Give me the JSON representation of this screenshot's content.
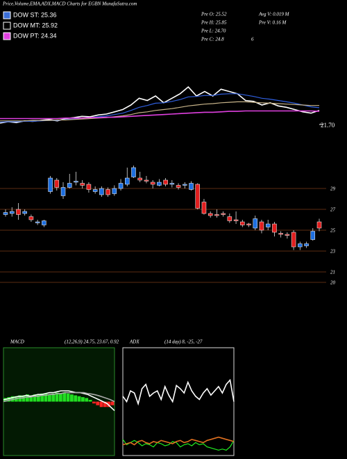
{
  "header": {
    "title": "Price,Volume,EMA,ADX,MACD Charts for EGBN MunafaSutra.com"
  },
  "legend": [
    {
      "label": "DOW ST: 25.36",
      "color": "#3b6fd8"
    },
    {
      "label": "DOW MT: 25.92",
      "color": "#000000"
    },
    {
      "label": "DOW PT: 24.34",
      "color": "#e040e0"
    }
  ],
  "info": [
    "Pre  O: 25.52",
    "Avg V: 0.019 M",
    "Pre  H: 25.85",
    "Pre  V: 0.16  M",
    "Pre  L: 24.70",
    "Pre  C: 24.8",
    "6"
  ],
  "chart_data": [
    {
      "type": "line",
      "ylim": [
        20,
        40
      ],
      "last_label": {
        "value": 21.7,
        "label": "21.70"
      },
      "series": [
        {
          "color": "#ffffff",
          "values": [
            22,
            22.3,
            22.1,
            22.5,
            22.4,
            22.6,
            22.8,
            22.5,
            23,
            23.2,
            23.5,
            23.4,
            23.8,
            24,
            24.5,
            25,
            26,
            27.5,
            27,
            28,
            26.5,
            27.5,
            28.5,
            30,
            28,
            29,
            28,
            29.5,
            29,
            28.5,
            27,
            26.8,
            26,
            26.5,
            25.8,
            25.5,
            25,
            24.5,
            24.2,
            24.8
          ]
        },
        {
          "color": "#2f5fe0",
          "values": [
            22.2,
            22.3,
            22.3,
            22.4,
            22.4,
            22.5,
            22.6,
            22.6,
            22.8,
            22.9,
            23.1,
            23.2,
            23.4,
            23.6,
            23.9,
            24.2,
            24.8,
            25.5,
            25.9,
            26.4,
            26.5,
            26.8,
            27.2,
            27.8,
            27.9,
            28.1,
            28.1,
            28.4,
            28.5,
            28.5,
            28.2,
            27.9,
            27.5,
            27.3,
            27,
            26.7,
            26.4,
            26,
            25.6,
            25.4
          ]
        },
        {
          "color": "#c8b48a",
          "values": [
            22.5,
            22.5,
            22.5,
            22.5,
            22.6,
            22.6,
            22.6,
            22.7,
            22.7,
            22.8,
            22.9,
            23,
            23.1,
            23.2,
            23.4,
            23.6,
            23.9,
            24.3,
            24.5,
            24.8,
            25,
            25.2,
            25.5,
            25.8,
            26,
            26.2,
            26.3,
            26.5,
            26.6,
            26.7,
            26.7,
            26.6,
            26.5,
            26.4,
            26.3,
            26.2,
            26.1,
            26,
            25.9,
            25.9
          ]
        },
        {
          "color": "#e040e0",
          "values": [
            23,
            23,
            23,
            23,
            23,
            23,
            23,
            23,
            23.1,
            23.1,
            23.1,
            23.2,
            23.2,
            23.3,
            23.3,
            23.4,
            23.5,
            23.6,
            23.7,
            23.8,
            23.9,
            24,
            24.1,
            24.2,
            24.3,
            24.4,
            24.4,
            24.5,
            24.6,
            24.6,
            24.7,
            24.7,
            24.7,
            24.7,
            24.7,
            24.7,
            24.7,
            24.7,
            24.7,
            24.6
          ]
        }
      ]
    },
    {
      "type": "candlestick",
      "ylim": [
        19,
        32
      ],
      "yticks": [
        29,
        27,
        25,
        23,
        21,
        20
      ],
      "grid": true,
      "up_color": "#1e6fe0",
      "down_color": "#e01e1e",
      "open": [
        26.5,
        26.6,
        27,
        26.6,
        26.3,
        25.7,
        25.5,
        28.7,
        29.8,
        28.3,
        29.1,
        29.6,
        29.5,
        29.4,
        28.7,
        28.4,
        28.9,
        28.5,
        29,
        29.4,
        30.1,
        30,
        29.8,
        29.6,
        29.3,
        29.8,
        29.4,
        29.3,
        29.3,
        28.9,
        29.4,
        27.7,
        26.6,
        26.5,
        26.6,
        26.3,
        26,
        25.8,
        25.6,
        25.2,
        25.8,
        25.3,
        25.6,
        24.7,
        24.6,
        24.8,
        23.4,
        23.5,
        24.1,
        25.8
      ],
      "high": [
        27,
        27.2,
        27.6,
        27,
        26.5,
        26,
        26,
        30.2,
        30,
        29.6,
        30.4,
        30.6,
        29.8,
        29.6,
        29.2,
        29.2,
        29.1,
        29.3,
        29.9,
        31,
        31.2,
        30.6,
        30.2,
        29.8,
        29.9,
        30,
        29.8,
        29.5,
        29.6,
        29.7,
        29.5,
        28,
        26.8,
        27,
        26.8,
        26.6,
        26.8,
        26,
        25.7,
        26.4,
        26,
        26,
        25.8,
        24.9,
        24.8,
        25,
        23.9,
        23.9,
        25.2,
        26.1
      ],
      "low": [
        26.3,
        26.3,
        26,
        26.4,
        25.8,
        25.5,
        25.3,
        28.5,
        28.8,
        28,
        29,
        29.3,
        29,
        28.6,
        28.5,
        28.2,
        28.2,
        28.3,
        28.8,
        29.2,
        30,
        29.6,
        29.5,
        29,
        29.2,
        29.2,
        29.1,
        28.9,
        29,
        28.8,
        27,
        26.5,
        26.2,
        26.2,
        26.3,
        25.7,
        25.6,
        25.3,
        25.3,
        25,
        24.7,
        25,
        24.4,
        24.3,
        24.2,
        23.1,
        23.1,
        23.3,
        24,
        24.9
      ],
      "close": [
        26.7,
        26.8,
        26.5,
        26.8,
        26,
        25.8,
        25.9,
        30,
        29.1,
        29.1,
        29.5,
        29.7,
        29.3,
        28.9,
        28.9,
        29,
        28.4,
        29,
        29.5,
        30,
        31,
        29.8,
        29.7,
        29.4,
        29.6,
        29.4,
        29.5,
        29.1,
        29.4,
        29.5,
        27.1,
        26.6,
        26.4,
        26.4,
        26.5,
        25.9,
        25.9,
        25.5,
        25.5,
        26.1,
        25,
        25.6,
        24.8,
        24.6,
        24.5,
        23.4,
        23.7,
        23.7,
        24.9,
        25.2
      ]
    },
    {
      "type": "macd",
      "title": "MACD",
      "subtitle": "(12,26,9) 24.75, 23.67, 0.92",
      "ylim": [
        -3,
        3
      ],
      "up_color": "#22dd22",
      "down_color": "#ff2222",
      "histogram": [
        0.2,
        0.25,
        0.3,
        0.3,
        0.35,
        0.35,
        0.4,
        0.35,
        0.4,
        0.4,
        0.45,
        0.45,
        0.4,
        0.45,
        0.5,
        0.45,
        0.5,
        0.45,
        0.4,
        0.35,
        0.3,
        0.25,
        0.2,
        0.1,
        -0.1,
        -0.2,
        -0.3,
        -0.3,
        -0.3,
        -0.2
      ],
      "series": [
        {
          "color": "#ffffff",
          "values": [
            0.1,
            0.15,
            0.2,
            0.25,
            0.3,
            0.3,
            0.35,
            0.3,
            0.35,
            0.4,
            0.4,
            0.45,
            0.5,
            0.5,
            0.55,
            0.6,
            0.6,
            0.6,
            0.55,
            0.5,
            0.5,
            0.45,
            0.4,
            0.3,
            0.2,
            0.1,
            0,
            -0.1,
            -0.3,
            -0.5
          ]
        },
        {
          "color": "#aaaaaa",
          "values": [
            0,
            0.05,
            0.1,
            0.15,
            0.2,
            0.2,
            0.25,
            0.25,
            0.3,
            0.3,
            0.35,
            0.35,
            0.4,
            0.4,
            0.45,
            0.45,
            0.5,
            0.5,
            0.5,
            0.5,
            0.5,
            0.5,
            0.45,
            0.42,
            0.38,
            0.32,
            0.25,
            0.18,
            0.1,
            0
          ]
        }
      ]
    },
    {
      "type": "adx",
      "title": "ADX",
      "subtitle": "(14  day) 8, -25, -27",
      "ylim": [
        0,
        100
      ],
      "series": [
        {
          "color": "#ffffff",
          "values": [
            55,
            50,
            60,
            58,
            48,
            62,
            66,
            55,
            58,
            60,
            52,
            64,
            56,
            50,
            65,
            62,
            58,
            68,
            60,
            55,
            52,
            58,
            62,
            56,
            60,
            64,
            58,
            66,
            70,
            50
          ]
        },
        {
          "color": "#22ee22",
          "values": [
            15,
            10,
            12,
            14,
            12,
            9,
            11,
            10,
            8,
            12,
            11,
            9,
            10,
            13,
            12,
            8,
            10,
            11,
            9,
            12,
            10,
            11,
            8,
            7,
            6,
            5,
            6,
            5,
            8,
            14
          ]
        },
        {
          "color": "#e07020",
          "values": [
            10,
            11,
            12,
            10,
            13,
            14,
            12,
            11,
            13,
            12,
            14,
            13,
            12,
            11,
            13,
            14,
            12,
            13,
            15,
            14,
            13,
            12,
            14,
            15,
            16,
            17,
            16,
            15,
            14,
            13
          ]
        }
      ]
    }
  ]
}
